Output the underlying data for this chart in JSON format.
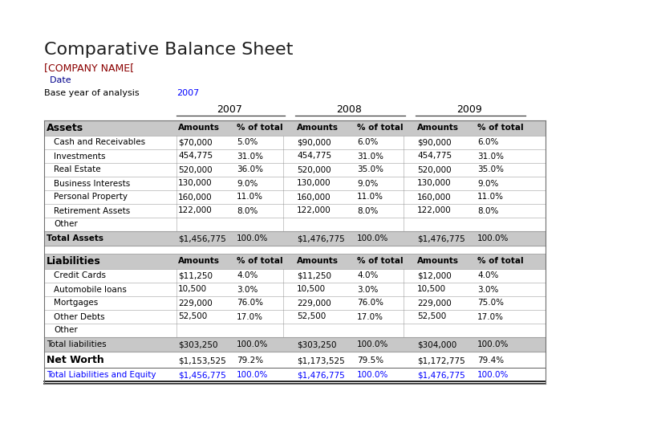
{
  "title": "Comparative Balance Sheet",
  "company": "[COMPANY NAME[",
  "date_label": "  Date",
  "base_year_label": "Base year of analysis",
  "base_year_value": "2007",
  "years": [
    "2007",
    "2008",
    "2009"
  ],
  "col_headers": [
    "Amounts",
    "% of total"
  ],
  "assets_section": "Assets",
  "liabilities_section": "Liabilities",
  "asset_rows": [
    [
      "Cash and Receivables",
      "$70,000",
      "5.0%",
      "$90,000",
      "6.0%",
      "$90,000",
      "6.0%"
    ],
    [
      "Investments",
      "454,775",
      "31.0%",
      "454,775",
      "31.0%",
      "454,775",
      "31.0%"
    ],
    [
      "Real Estate",
      "520,000",
      "36.0%",
      "520,000",
      "35.0%",
      "520,000",
      "35.0%"
    ],
    [
      "Business Interests",
      "130,000",
      "9.0%",
      "130,000",
      "9.0%",
      "130,000",
      "9.0%"
    ],
    [
      "Personal Property",
      "160,000",
      "11.0%",
      "160,000",
      "11.0%",
      "160,000",
      "11.0%"
    ],
    [
      "Retirement Assets",
      "122,000",
      "8.0%",
      "122,000",
      "8.0%",
      "122,000",
      "8.0%"
    ],
    [
      "Other",
      "",
      "",
      "",
      "",
      "",
      ""
    ]
  ],
  "total_assets": [
    "Total Assets",
    "$1,456,775",
    "100.0%",
    "$1,476,775",
    "100.0%",
    "$1,476,775",
    "100.0%"
  ],
  "liability_rows": [
    [
      "Credit Cards",
      "$11,250",
      "4.0%",
      "$11,250",
      "4.0%",
      "$12,000",
      "4.0%"
    ],
    [
      "Automobile loans",
      "10,500",
      "3.0%",
      "10,500",
      "3.0%",
      "10,500",
      "3.0%"
    ],
    [
      "Mortgages",
      "229,000",
      "76.0%",
      "229,000",
      "76.0%",
      "229,000",
      "75.0%"
    ],
    [
      "Other Debts",
      "52,500",
      "17.0%",
      "52,500",
      "17.0%",
      "52,500",
      "17.0%"
    ],
    [
      "Other",
      "",
      "",
      "",
      "",
      "",
      ""
    ]
  ],
  "total_liabilities": [
    "Total liabilities",
    "$303,250",
    "100.0%",
    "$303,250",
    "100.0%",
    "$304,000",
    "100.0%"
  ],
  "net_worth_row": [
    "Net Worth",
    "$1,153,525",
    "79.2%",
    "$1,173,525",
    "79.5%",
    "$1,172,775",
    "79.4%"
  ],
  "total_equity_row": [
    "Total Liabilities and Equity",
    "$1,456,775",
    "100.0%",
    "$1,476,775",
    "100.0%",
    "$1,476,775",
    "100.0%"
  ],
  "bg_color": "#ffffff",
  "title_color": "#1F1F1F",
  "company_color": "#8B0000",
  "date_color": "#00008B",
  "base_year_color": "#0000FF",
  "section_bg": "#C8C8C8",
  "total_bg": "#C8C8C8",
  "data_color": "#000000",
  "equity_color": "#0000FF",
  "border_color": "#A0A0A0",
  "net_worth_color": "#000000"
}
